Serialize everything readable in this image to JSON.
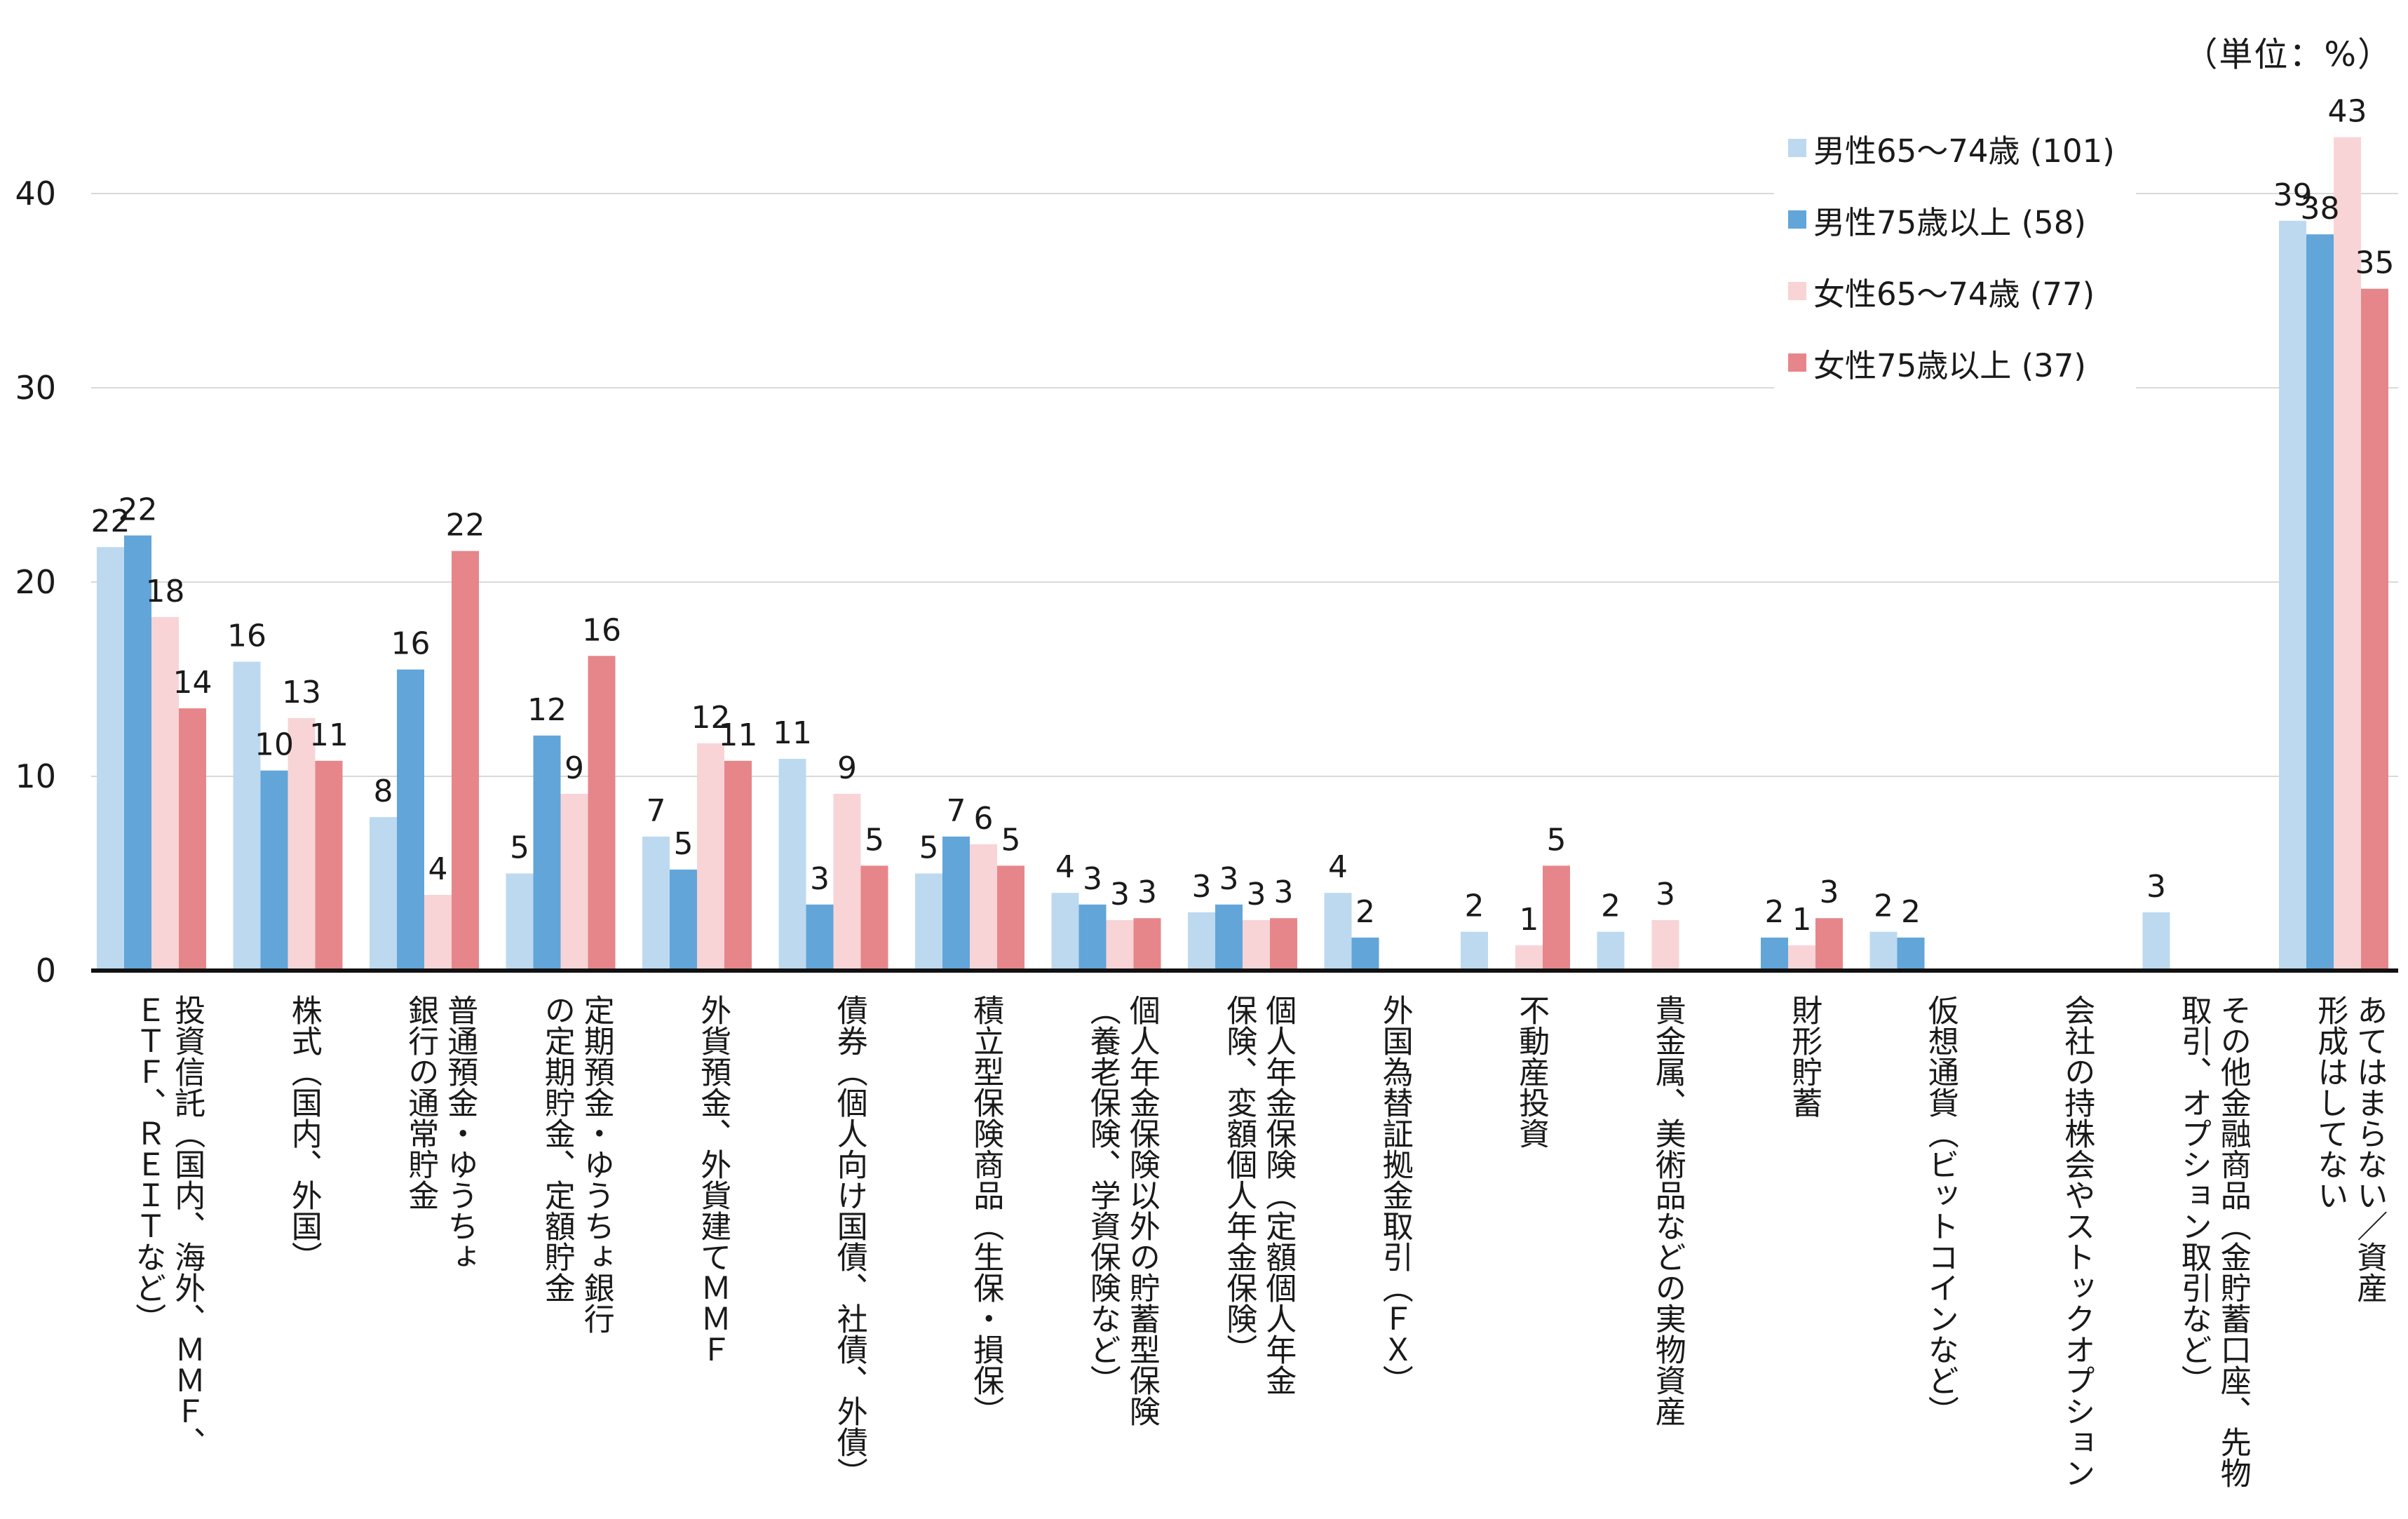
{
  "chart_data": {
    "type": "bar",
    "unit_label": "（単位：%）",
    "ylim": [
      0,
      48
    ],
    "yticks": [
      0,
      10,
      20,
      30,
      40
    ],
    "grid": true,
    "legend_position": "top-right",
    "series": [
      {
        "name": "男性65〜74歳 (101)",
        "color": "#bdd9ef",
        "values": [
          22,
          16,
          8,
          5,
          7,
          11,
          5,
          4,
          3,
          4,
          2,
          2,
          null,
          2,
          null,
          3,
          39
        ]
      },
      {
        "name": "男性75歳以上 (58)",
        "color": "#62a5d9",
        "values": [
          22,
          10,
          16,
          12,
          5,
          3,
          7,
          3,
          3,
          2,
          null,
          null,
          2,
          2,
          null,
          null,
          38
        ]
      },
      {
        "name": "女性65〜74歳 (77)",
        "color": "#f8d4d6",
        "values": [
          18,
          13,
          4,
          9,
          12,
          9,
          6,
          3,
          3,
          null,
          1,
          3,
          1,
          null,
          null,
          null,
          43
        ]
      },
      {
        "name": "女性75歳以上 (37)",
        "color": "#e6868a",
        "values": [
          14,
          11,
          22,
          16,
          11,
          5,
          5,
          3,
          3,
          null,
          5,
          null,
          3,
          null,
          null,
          null,
          35
        ]
      }
    ],
    "heights": [
      [
        21.8,
        15.9,
        7.9,
        5.0,
        6.9,
        10.9,
        5.0,
        4.0,
        3.0,
        4.0,
        2.0,
        2.0,
        0,
        2.0,
        0,
        3.0,
        38.6
      ],
      [
        22.4,
        10.3,
        15.5,
        12.1,
        5.2,
        3.4,
        6.9,
        3.4,
        3.4,
        1.7,
        0,
        0,
        1.7,
        1.7,
        0,
        0,
        37.9
      ],
      [
        18.2,
        13.0,
        3.9,
        9.1,
        11.7,
        9.1,
        6.5,
        2.6,
        2.6,
        0,
        1.3,
        2.6,
        1.3,
        0,
        0,
        0,
        42.9
      ],
      [
        13.5,
        10.8,
        21.6,
        16.2,
        10.8,
        5.4,
        5.4,
        2.7,
        2.7,
        0,
        5.4,
        0,
        2.7,
        0,
        0,
        0,
        35.1
      ]
    ],
    "categories": [
      [
        "投資信託（国内、海外、ＭＭＦ、",
        "ＥＴＦ、ＲＥＩＴなど）"
      ],
      [
        "株式（国内、外国）"
      ],
      [
        "普通預金・ゆうちょ",
        "銀行の通常貯金"
      ],
      [
        "定期預金・ゆうちょ銀行",
        "の定期貯金、定額貯金"
      ],
      [
        "外貨預金、外貨建てＭＭＦ"
      ],
      [
        "債券（個人向け国債、社債、外債）"
      ],
      [
        "積立型保険商品（生保・損保）"
      ],
      [
        "個人年金保険以外の貯蓄型保険",
        "（養老保険、学資保険など）"
      ],
      [
        "個人年金保険（定額個人年金",
        "保険、変額個人年金保険）"
      ],
      [
        "外国為替証拠金取引（ＦＸ）"
      ],
      [
        "不動産投資"
      ],
      [
        "貴金属、美術品などの実物資産"
      ],
      [
        "財形貯蓄"
      ],
      [
        "仮想通貨（ビットコインなど）"
      ],
      [
        "会社の持株会やストックオプション"
      ],
      [
        "その他金融商品（金貯蓄口座、先物",
        "取引、オプション取引など）"
      ],
      [
        "あてはまらない／資産",
        "形成はしてない"
      ]
    ]
  }
}
